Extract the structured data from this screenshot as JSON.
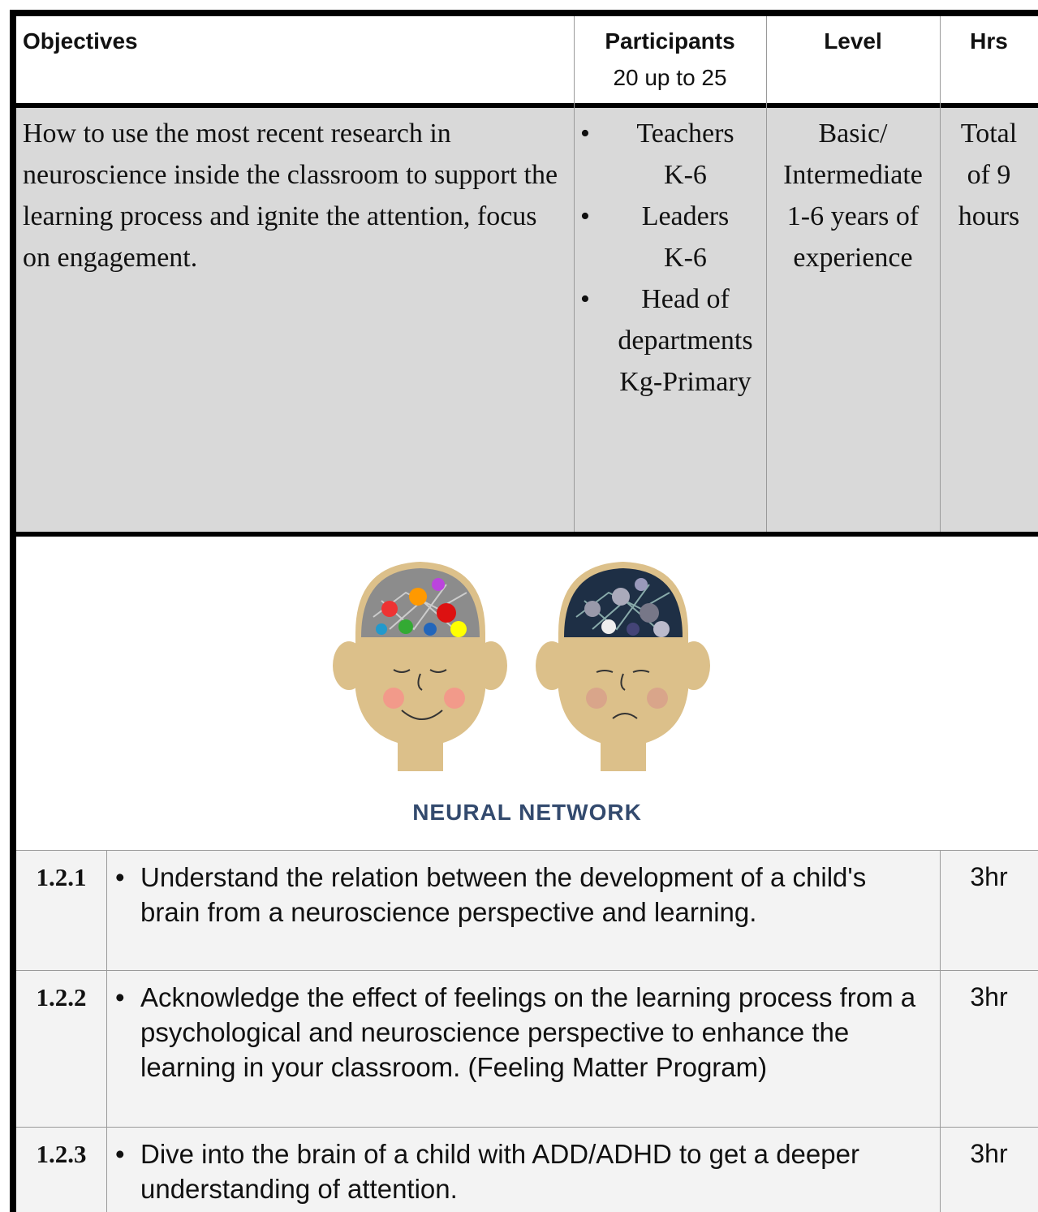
{
  "header": {
    "objectives": "Objectives",
    "participants": "Participants",
    "participants_count": "20 up to 25",
    "level": "Level",
    "hrs": "Hrs"
  },
  "course": {
    "objective": "How to use the most recent research in neuroscience inside the classroom to support the learning process and ignite the attention, focus on engagement.",
    "participants": [
      [
        "Teachers",
        "K-6"
      ],
      [
        "Leaders",
        "K-6"
      ],
      [
        "Head of",
        "departments",
        "Kg-Primary"
      ]
    ],
    "level": [
      "Basic/",
      "Intermediate",
      "1-6 years of",
      "experience"
    ],
    "hrs": [
      "Total",
      "of 9",
      "hours"
    ]
  },
  "image": {
    "caption": "NEURAL NETWORK"
  },
  "sessions": [
    {
      "code": "1.2.1",
      "text": "Understand the relation between the development of a child's brain from a neuroscience perspective and learning.",
      "hrs": "3hr"
    },
    {
      "code": "1.2.2",
      "text": "Acknowledge the effect of feelings on the learning process from a psychological and neuroscience perspective to enhance the learning in your classroom. (Feeling Matter Program)",
      "hrs": "3hr"
    },
    {
      "code": "1.2.3",
      "text": "Dive into the brain of a child with ADD/ADHD to get a deeper understanding of attention.",
      "hrs": "3hr"
    }
  ]
}
